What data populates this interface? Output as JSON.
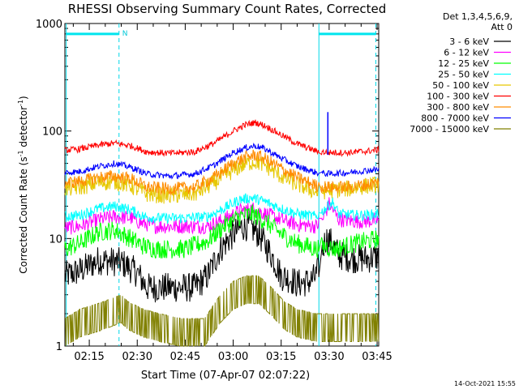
{
  "chart_data": {
    "type": "line",
    "title": "RHESSI Observing Summary Count Rates, Corrected",
    "xlabel": "Start Time (07-Apr-07 02:07:22)",
    "ylabel_main": "Corrected Count Rate (s",
    "ylabel_sup1": "-1",
    "ylabel_mid": " detector",
    "ylabel_sup2": "-1",
    "ylabel_end": ")",
    "yscale": "log",
    "ylim": [
      1,
      1000
    ],
    "xlim_min": [
      7.37,
      105.5
    ],
    "xticks_min": [
      15,
      30,
      45,
      60,
      75,
      90,
      105
    ],
    "xtick_labels": [
      "02:15",
      "02:30",
      "02:45",
      "03:00",
      "03:15",
      "03:30",
      "03:45"
    ],
    "yticks": [
      1,
      10,
      100,
      1000
    ],
    "ytick_labels": [
      "1",
      "10",
      "100",
      "1000"
    ],
    "legend_header": [
      "Det 1,3,4,5,6,9,",
      "Att 0"
    ],
    "legend_position": "right",
    "footer_date": "14-Oct-2021 15:55",
    "flag_marker": "N",
    "series": [
      {
        "name": "3 - 6 keV",
        "color": "#000000",
        "values": [
          [
            7.4,
            4.5
          ],
          [
            12,
            5
          ],
          [
            18,
            6.3
          ],
          [
            25,
            6
          ],
          [
            30,
            4.8
          ],
          [
            33,
            3.5
          ],
          [
            40,
            3.5
          ],
          [
            48,
            3.5
          ],
          [
            52,
            4.5
          ],
          [
            56,
            8
          ],
          [
            60,
            11
          ],
          [
            63,
            13
          ],
          [
            65,
            13
          ],
          [
            68,
            11
          ],
          [
            72,
            7
          ],
          [
            75,
            4.5
          ],
          [
            78,
            4.2
          ],
          [
            80,
            3.8
          ],
          [
            84,
            4
          ],
          [
            86,
            4.5
          ],
          [
            88,
            8
          ],
          [
            89,
            10
          ],
          [
            91,
            9
          ],
          [
            93,
            7
          ],
          [
            98,
            6.5
          ],
          [
            102,
            6.5
          ],
          [
            105.5,
            6.8
          ]
        ]
      },
      {
        "name": "6 - 12 keV",
        "color": "#ff00ff",
        "values": [
          [
            7.4,
            12.5
          ],
          [
            12,
            13
          ],
          [
            18,
            15
          ],
          [
            23,
            16
          ],
          [
            28,
            15.5
          ],
          [
            31,
            14
          ],
          [
            36,
            13
          ],
          [
            45,
            13
          ],
          [
            52,
            13
          ],
          [
            57,
            15
          ],
          [
            62,
            18
          ],
          [
            66,
            19
          ],
          [
            70,
            17
          ],
          [
            75,
            15
          ],
          [
            80,
            13.5
          ],
          [
            86,
            13
          ],
          [
            88,
            15
          ],
          [
            90,
            21
          ],
          [
            91,
            19
          ],
          [
            93,
            15
          ],
          [
            98,
            14.5
          ],
          [
            102,
            14.5
          ],
          [
            105.5,
            15
          ]
        ]
      },
      {
        "name": "12 - 25 keV",
        "color": "#00ff00",
        "values": [
          [
            7.4,
            8
          ],
          [
            12,
            9
          ],
          [
            18,
            11.5
          ],
          [
            23,
            12
          ],
          [
            28,
            10
          ],
          [
            32,
            8.5
          ],
          [
            36,
            8
          ],
          [
            45,
            8
          ],
          [
            52,
            9.5
          ],
          [
            57,
            13
          ],
          [
            62,
            16
          ],
          [
            66,
            17
          ],
          [
            70,
            14.5
          ],
          [
            75,
            11
          ],
          [
            80,
            9
          ],
          [
            86,
            8
          ],
          [
            88,
            8.5
          ],
          [
            92,
            8
          ],
          [
            98,
            9
          ],
          [
            102,
            9.5
          ],
          [
            105.5,
            10
          ]
        ]
      },
      {
        "name": "25 - 50 keV",
        "color": "#00ffff",
        "values": [
          [
            7.4,
            16
          ],
          [
            12,
            16.5
          ],
          [
            18,
            19
          ],
          [
            23,
            20
          ],
          [
            28,
            18.5
          ],
          [
            32,
            16
          ],
          [
            36,
            15.5
          ],
          [
            45,
            15.5
          ],
          [
            52,
            16
          ],
          [
            57,
            19
          ],
          [
            62,
            23
          ],
          [
            66,
            24
          ],
          [
            70,
            22
          ],
          [
            75,
            19
          ],
          [
            80,
            17
          ],
          [
            86,
            16
          ],
          [
            88,
            18
          ],
          [
            91,
            22
          ],
          [
            93,
            17
          ],
          [
            98,
            16.5
          ],
          [
            102,
            16.5
          ],
          [
            105.5,
            17
          ]
        ]
      },
      {
        "name": "50 - 100 keV",
        "color": "#e6c800",
        "values": [
          [
            7.4,
            29
          ],
          [
            12,
            30
          ],
          [
            18,
            33
          ],
          [
            23,
            34
          ],
          [
            28,
            31
          ],
          [
            33,
            26
          ],
          [
            40,
            25
          ],
          [
            48,
            26
          ],
          [
            54,
            33
          ],
          [
            60,
            43
          ],
          [
            64,
            50
          ],
          [
            67,
            52
          ],
          [
            70,
            48
          ],
          [
            75,
            38
          ],
          [
            80,
            32
          ],
          [
            86,
            27
          ],
          [
            90,
            28
          ],
          [
            96,
            29
          ],
          [
            102,
            31
          ],
          [
            105.5,
            32
          ]
        ]
      },
      {
        "name": "100 - 300 keV",
        "color": "#ff0000",
        "values": [
          [
            7.4,
            66
          ],
          [
            12,
            68
          ],
          [
            18,
            74
          ],
          [
            23,
            77
          ],
          [
            28,
            73
          ],
          [
            33,
            64
          ],
          [
            40,
            62
          ],
          [
            48,
            64
          ],
          [
            54,
            77
          ],
          [
            60,
            100
          ],
          [
            64,
            115
          ],
          [
            67,
            120
          ],
          [
            70,
            112
          ],
          [
            75,
            92
          ],
          [
            80,
            76
          ],
          [
            86,
            65
          ],
          [
            90,
            63
          ],
          [
            96,
            63
          ],
          [
            102,
            65
          ],
          [
            105.5,
            67
          ]
        ]
      },
      {
        "name": "300 - 800 keV",
        "color": "#ff8c00",
        "values": [
          [
            7.4,
            33
          ],
          [
            12,
            34
          ],
          [
            18,
            37
          ],
          [
            23,
            38
          ],
          [
            28,
            36
          ],
          [
            33,
            30
          ],
          [
            40,
            29
          ],
          [
            48,
            30
          ],
          [
            54,
            37
          ],
          [
            60,
            50
          ],
          [
            64,
            57
          ],
          [
            67,
            60
          ],
          [
            70,
            55
          ],
          [
            75,
            45
          ],
          [
            80,
            37
          ],
          [
            86,
            31
          ],
          [
            90,
            30
          ],
          [
            96,
            30
          ],
          [
            102,
            32
          ],
          [
            105.5,
            33
          ]
        ]
      },
      {
        "name": "800 - 7000 keV",
        "color": "#0000ff",
        "values": [
          [
            7.4,
            41
          ],
          [
            12,
            42
          ],
          [
            18,
            47
          ],
          [
            23,
            50
          ],
          [
            28,
            46
          ],
          [
            33,
            40
          ],
          [
            40,
            38
          ],
          [
            48,
            40
          ],
          [
            54,
            48
          ],
          [
            60,
            63
          ],
          [
            64,
            70
          ],
          [
            67,
            73
          ],
          [
            70,
            68
          ],
          [
            75,
            56
          ],
          [
            80,
            47
          ],
          [
            86,
            41
          ],
          [
            90,
            40
          ],
          [
            96,
            41
          ],
          [
            102,
            43
          ],
          [
            105.5,
            44
          ]
        ]
      },
      {
        "name": "7000 - 15000 keV",
        "color": "#808000",
        "values": [
          [
            7.4,
            1.8
          ],
          [
            12,
            2.2
          ],
          [
            18,
            2.5
          ],
          [
            25,
            3
          ],
          [
            27,
            2.6
          ],
          [
            32,
            2.2
          ],
          [
            37,
            2
          ],
          [
            44,
            1.8
          ],
          [
            51,
            1.8
          ],
          [
            56,
            3
          ],
          [
            60,
            4
          ],
          [
            64,
            4.5
          ],
          [
            68,
            4.5
          ],
          [
            72,
            3.5
          ],
          [
            76,
            2.6
          ],
          [
            80,
            2.2
          ],
          [
            86,
            2
          ],
          [
            90,
            2
          ],
          [
            96,
            2
          ],
          [
            102,
            2
          ],
          [
            105.5,
            2
          ]
        ]
      }
    ],
    "vertical_markers_min": [
      7.8,
      24.3,
      86.8,
      104.6
    ],
    "saa_bars_min": [
      [
        7.8,
        24.3
      ],
      [
        86.8,
        104.6
      ]
    ],
    "saa_level": 800
  }
}
